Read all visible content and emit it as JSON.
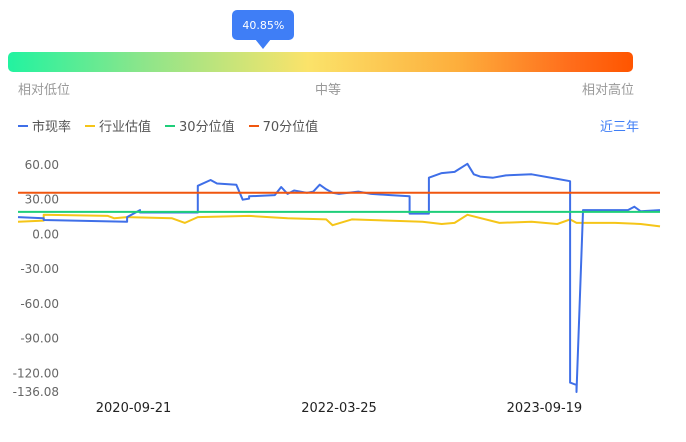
{
  "percentile": {
    "value_label": "40.85%",
    "value": 0.4085,
    "scale_labels": {
      "low": "相对低位",
      "mid": "中等",
      "high": "相对高位"
    }
  },
  "legend": [
    {
      "label": "市现率",
      "color": "#3f6fe8"
    },
    {
      "label": "行业估值",
      "color": "#f5c518"
    },
    {
      "label": "30分位值",
      "color": "#1fce7a"
    },
    {
      "label": "70分位值",
      "color": "#f0560f"
    }
  ],
  "range_selector": {
    "label": "近三年"
  },
  "chart_data": {
    "type": "line",
    "y_ticks": [
      "60.00",
      "30.00",
      "0.00",
      "-30.00",
      "-60.00",
      "-90.00",
      "-120.00",
      "-136.08"
    ],
    "y_tick_values": [
      60,
      30,
      0,
      -30,
      -60,
      -90,
      -120,
      -136.08
    ],
    "ylim": [
      -136.08,
      60
    ],
    "x_ticks": [
      "2020-09-21",
      "2022-03-25",
      "2023-09-19"
    ],
    "x_tick_positions": [
      0.18,
      0.5,
      0.82
    ],
    "series": [
      {
        "name": "市现率",
        "color": "#3f6fe8",
        "x": [
          0,
          0.04,
          0.04,
          0.17,
          0.17,
          0.19,
          0.19,
          0.28,
          0.28,
          0.3,
          0.31,
          0.34,
          0.35,
          0.36,
          0.36,
          0.4,
          0.41,
          0.42,
          0.43,
          0.45,
          0.46,
          0.47,
          0.48,
          0.49,
          0.5,
          0.53,
          0.55,
          0.58,
          0.61,
          0.61,
          0.64,
          0.64,
          0.66,
          0.68,
          0.7,
          0.71,
          0.72,
          0.74,
          0.76,
          0.8,
          0.84,
          0.86,
          0.86,
          0.87,
          0.87,
          0.88,
          0.88,
          0.89,
          0.95,
          0.96,
          0.97,
          1.0
        ],
        "y": [
          15,
          14,
          12.5,
          11,
          15,
          21,
          19,
          19,
          42,
          47,
          44,
          43,
          30,
          31,
          33,
          34,
          41,
          35,
          38,
          36,
          37,
          43,
          39,
          36,
          35,
          37,
          35,
          34,
          33,
          18,
          18,
          49,
          53,
          54,
          61,
          52,
          50,
          49,
          51,
          52,
          48,
          46,
          -128,
          -130,
          -136.08,
          20,
          21,
          21,
          21,
          24,
          20,
          21
        ]
      },
      {
        "name": "行业估值",
        "color": "#f5c518",
        "x": [
          0,
          0.04,
          0.04,
          0.14,
          0.15,
          0.17,
          0.24,
          0.26,
          0.28,
          0.36,
          0.42,
          0.48,
          0.49,
          0.52,
          0.63,
          0.66,
          0.68,
          0.7,
          0.75,
          0.8,
          0.82,
          0.84,
          0.86,
          0.87,
          0.93,
          0.97,
          1.0
        ],
        "y": [
          11,
          12,
          17,
          16,
          14,
          15,
          14,
          10,
          15,
          16,
          14,
          13,
          8,
          13,
          11,
          9,
          10,
          17,
          10,
          11,
          10,
          9,
          13,
          10,
          10,
          9,
          7
        ]
      },
      {
        "name": "30分位值",
        "color": "#1fce7a",
        "x": [
          0,
          1.0
        ],
        "y": [
          19.5,
          19.5
        ]
      },
      {
        "name": "70分位值",
        "color": "#f0560f",
        "x": [
          0,
          1.0
        ],
        "y": [
          36,
          36
        ]
      }
    ]
  }
}
